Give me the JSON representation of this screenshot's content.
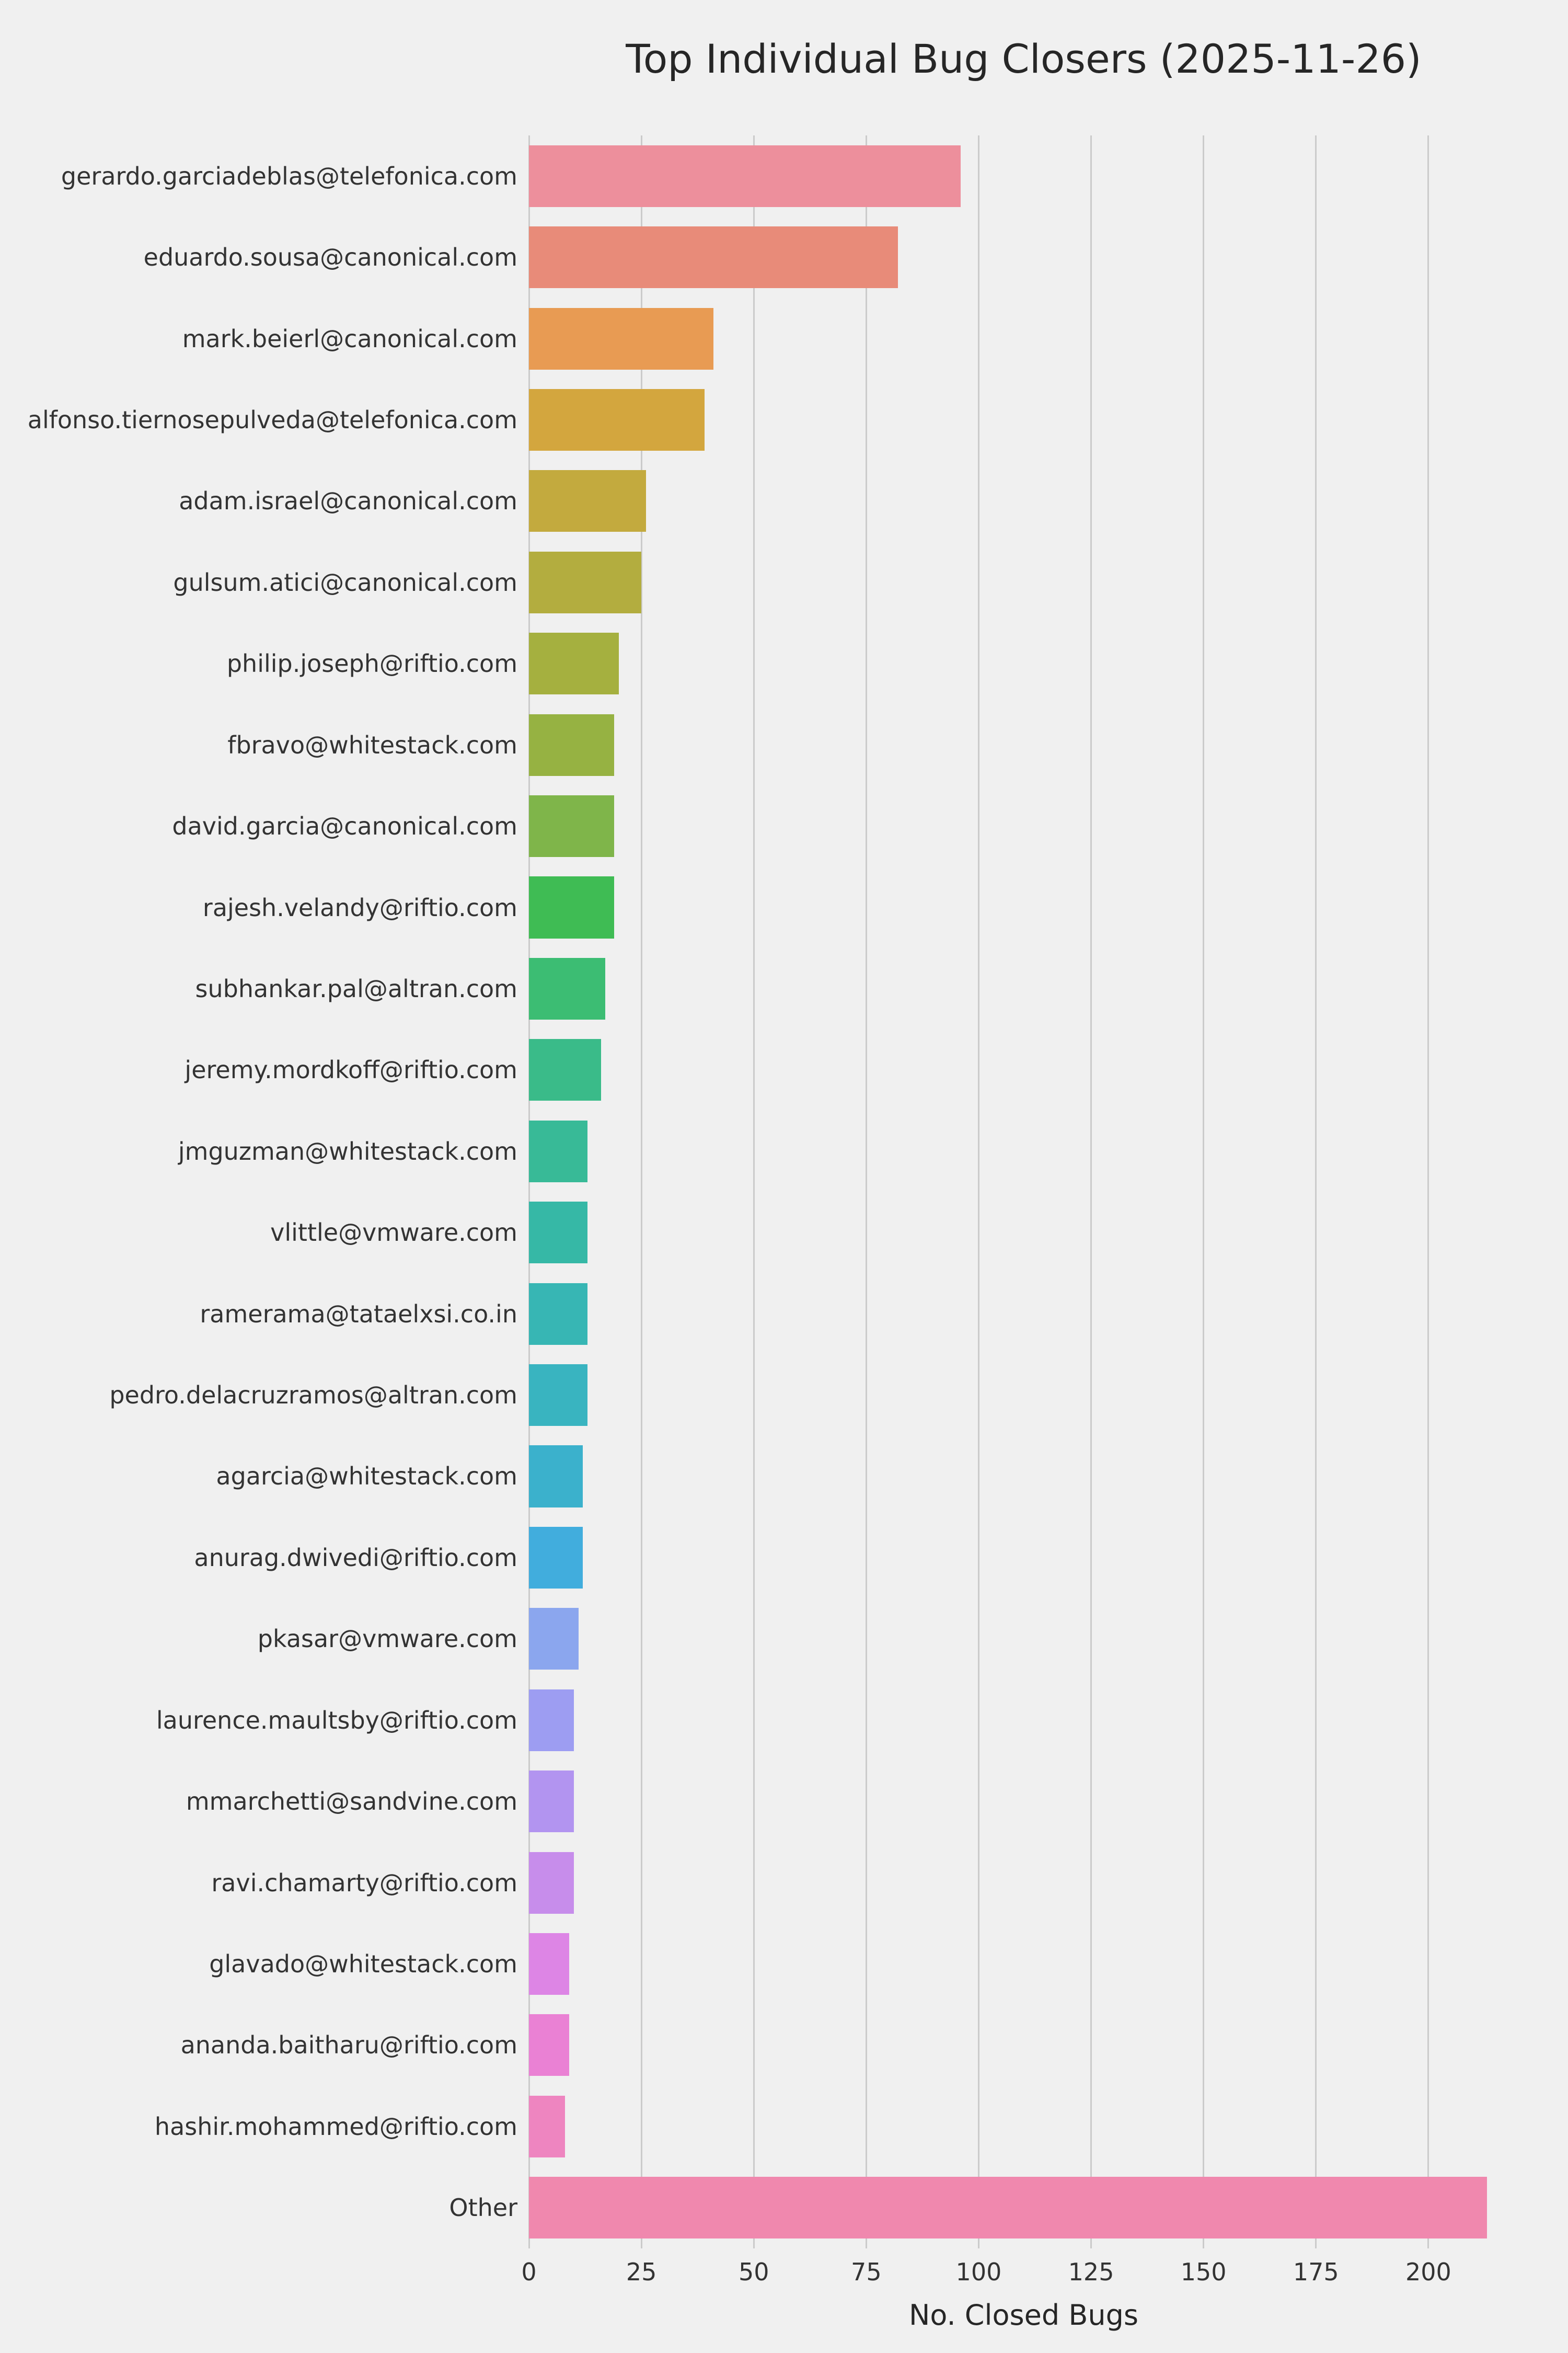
{
  "title": "Top Individual Bug Closers (2025-11-26)",
  "colors": {
    "background": "#f0f0f0",
    "gridline": "#cbcbcb",
    "text": "#333333"
  },
  "chart_data": {
    "type": "bar",
    "orientation": "horizontal",
    "title": "Top Individual Bug Closers (2025-11-26)",
    "xlabel": "No. Closed Bugs",
    "ylabel": "",
    "xlim": [
      0,
      220
    ],
    "x_ticks": [
      0,
      25,
      50,
      75,
      100,
      125,
      150,
      175,
      200
    ],
    "grid": true,
    "legend": false,
    "categories": [
      "gerardo.garciadeblas@telefonica.com",
      "eduardo.sousa@canonical.com",
      "mark.beierl@canonical.com",
      "alfonso.tiernosepulveda@telefonica.com",
      "adam.israel@canonical.com",
      "gulsum.atici@canonical.com",
      "philip.joseph@riftio.com",
      "fbravo@whitestack.com",
      "david.garcia@canonical.com",
      "rajesh.velandy@riftio.com",
      "subhankar.pal@altran.com",
      "jeremy.mordkoff@riftio.com",
      "jmguzman@whitestack.com",
      "vlittle@vmware.com",
      "ramerama@tataelxsi.co.in",
      "pedro.delacruzramos@altran.com",
      "agarcia@whitestack.com",
      "anurag.dwivedi@riftio.com",
      "pkasar@vmware.com",
      "laurence.maultsby@riftio.com",
      "mmarchetti@sandvine.com",
      "ravi.chamarty@riftio.com",
      "glavado@whitestack.com",
      "ananda.baitharu@riftio.com",
      "hashir.mohammed@riftio.com",
      "Other"
    ],
    "values": [
      96,
      82,
      41,
      39,
      26,
      25,
      20,
      19,
      19,
      19,
      17,
      16,
      13,
      13,
      13,
      13,
      12,
      12,
      11,
      10,
      10,
      10,
      9,
      9,
      8,
      213
    ],
    "bar_colors": [
      "#ed8f9c",
      "#e88b79",
      "#e89b53",
      "#d3a63e",
      "#c3aa3e",
      "#b3ad3f",
      "#a5b03f",
      "#96b242",
      "#7fb54a",
      "#3fbc54",
      "#3cbd73",
      "#3abb89",
      "#38ba97",
      "#36b8a6",
      "#37b6b4",
      "#39b4c0",
      "#3bb1cc",
      "#41addd",
      "#8ba6ee",
      "#9d9df2",
      "#b294f0",
      "#c78deb",
      "#dd85e5",
      "#ea81d4",
      "#ee85c0",
      "#f088ae"
    ]
  }
}
